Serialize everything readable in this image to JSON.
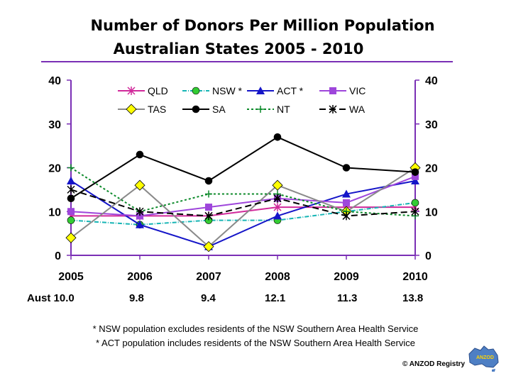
{
  "title_line1": "Number of Donors Per Million Population",
  "title_line2": "Australian States  2005 - 2010",
  "aust_label": "Aust",
  "aust_values": [
    "10.0",
    "9.8",
    "9.4",
    "12.1",
    "11.3",
    "13.8"
  ],
  "footnotes": [
    "* NSW population excludes residents of the NSW Southern Area Health Service",
    "* ACT population includes residents of the NSW Southern Area Health Service"
  ],
  "copyright": "© ANZOD  Registry",
  "logo_text": "ANZOD",
  "colors": {
    "title_rule": "#7a2fb5",
    "plot_border": "#7a2fb5"
  },
  "chart_data": {
    "type": "line",
    "x": [
      "2005",
      "2006",
      "2007",
      "2008",
      "2009",
      "2010"
    ],
    "ylim": [
      0,
      40
    ],
    "yticks": [
      0,
      10,
      20,
      30,
      40
    ],
    "grid": false,
    "legend_position": "top",
    "series": [
      {
        "name": "QLD",
        "values": [
          9,
          9,
          9,
          11,
          11,
          11
        ],
        "color": "#d12a9b",
        "dash": "",
        "marker": "asterisk"
      },
      {
        "name": "NSW *",
        "values": [
          8,
          7,
          8,
          8,
          10,
          12
        ],
        "color": "#17b5b5",
        "dash": "6,2,1,2",
        "marker": "circle",
        "marker_fill": "#33cc33"
      },
      {
        "name": "ACT *",
        "values": [
          17,
          7,
          2,
          9,
          14,
          17
        ],
        "color": "#1515c8",
        "dash": "",
        "marker": "triangle"
      },
      {
        "name": "VIC",
        "values": [
          10,
          9,
          11,
          13,
          12,
          18
        ],
        "color": "#9e46db",
        "dash": "",
        "marker": "square"
      },
      {
        "name": "TAS",
        "values": [
          4,
          16,
          2,
          16,
          10,
          20
        ],
        "color": "#8a8a8a",
        "dash": "",
        "marker": "diamond",
        "marker_fill": "#ffff00"
      },
      {
        "name": "SA",
        "values": [
          13,
          23,
          17,
          27,
          20,
          19
        ],
        "color": "#000000",
        "dash": "",
        "marker": "circle",
        "marker_fill": "#000000"
      },
      {
        "name": "NT",
        "values": [
          20,
          10,
          14,
          14,
          10,
          9
        ],
        "color": "#0c8a2a",
        "dash": "3,3",
        "marker": "plus"
      },
      {
        "name": "WA",
        "values": [
          15,
          10,
          9,
          13,
          9,
          10
        ],
        "color": "#000000",
        "dash": "9,5",
        "marker": "asterisk"
      }
    ]
  }
}
